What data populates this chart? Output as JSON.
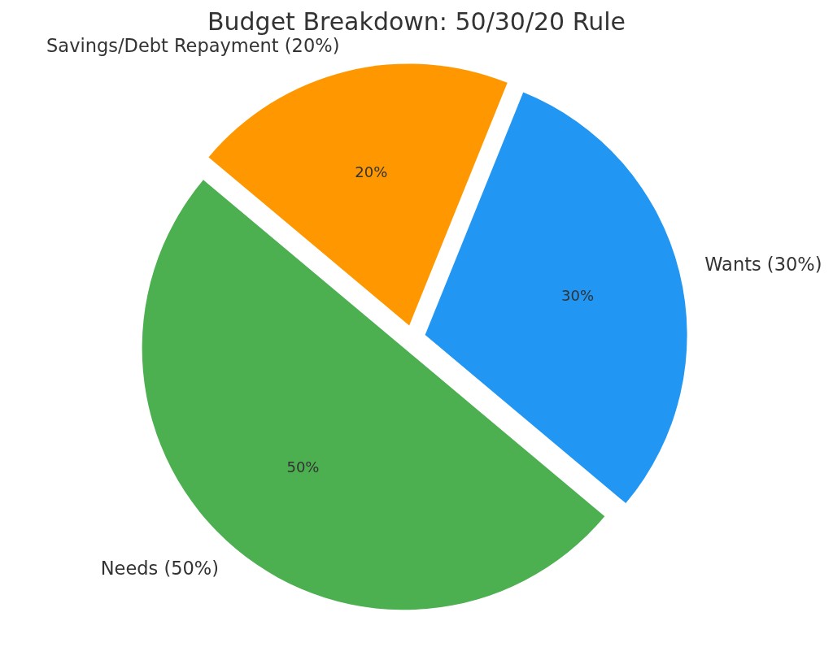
{
  "chart_data": {
    "type": "pie",
    "title": "Budget Breakdown: 50/30/20 Rule",
    "categories": [
      "Needs (50%)",
      "Wants (30%)",
      "Savings/Debt Repayment (20%)"
    ],
    "values": [
      50,
      30,
      20
    ],
    "colors": [
      "#4caf50",
      "#2196f3",
      "#ff9800"
    ],
    "value_labels": [
      "50%",
      "30%",
      "20%"
    ]
  }
}
